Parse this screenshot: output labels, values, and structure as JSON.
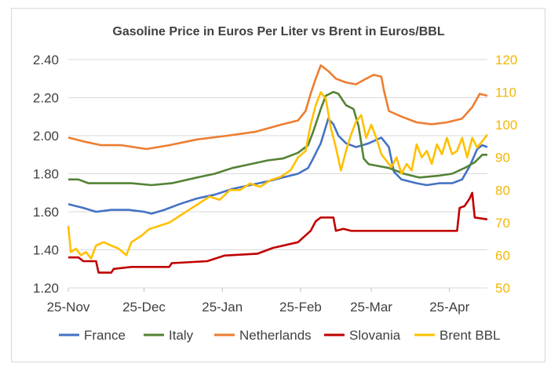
{
  "chart_data": {
    "type": "line",
    "title": "Gasoline Price in Euros Per Liter vs Brent in Euros/BBL",
    "x_tick_labels": [
      "25-Nov",
      "25-Dec",
      "25-Jan",
      "25-Feb",
      "25-Mar",
      "25-Apr"
    ],
    "x_start": "2021-11-25",
    "x_end": "2022-05-10",
    "left_axis": {
      "ylim": [
        1.2,
        2.4
      ],
      "ticks": [
        "1.20",
        "1.40",
        "1.60",
        "1.80",
        "2.00",
        "2.20",
        "2.40"
      ]
    },
    "right_axis": {
      "ylim": [
        50,
        120
      ],
      "ticks": [
        "50",
        "60",
        "70",
        "80",
        "90",
        "100",
        "110",
        "120"
      ]
    },
    "grid": "horizontal",
    "legend_position": "bottom",
    "series": [
      {
        "name": "France",
        "axis": "left",
        "color": "#4472c4",
        "points": [
          [
            "2021-11-25",
            1.64
          ],
          [
            "2021-11-28",
            1.63
          ],
          [
            "2021-12-01",
            1.62
          ],
          [
            "2021-12-06",
            1.6
          ],
          [
            "2021-12-12",
            1.61
          ],
          [
            "2021-12-19",
            1.61
          ],
          [
            "2021-12-25",
            1.6
          ],
          [
            "2021-12-28",
            1.59
          ],
          [
            "2022-01-02",
            1.61
          ],
          [
            "2022-01-08",
            1.64
          ],
          [
            "2022-01-15",
            1.67
          ],
          [
            "2022-01-22",
            1.69
          ],
          [
            "2022-01-29",
            1.72
          ],
          [
            "2022-02-05",
            1.74
          ],
          [
            "2022-02-12",
            1.76
          ],
          [
            "2022-02-18",
            1.78
          ],
          [
            "2022-02-24",
            1.8
          ],
          [
            "2022-02-28",
            1.83
          ],
          [
            "2022-03-02",
            1.88
          ],
          [
            "2022-03-05",
            1.96
          ],
          [
            "2022-03-08",
            2.09
          ],
          [
            "2022-03-10",
            2.06
          ],
          [
            "2022-03-12",
            2.0
          ],
          [
            "2022-03-15",
            1.96
          ],
          [
            "2022-03-19",
            1.94
          ],
          [
            "2022-03-24",
            1.96
          ],
          [
            "2022-03-29",
            1.99
          ],
          [
            "2022-04-01",
            1.94
          ],
          [
            "2022-04-03",
            1.81
          ],
          [
            "2022-04-06",
            1.77
          ],
          [
            "2022-04-12",
            1.75
          ],
          [
            "2022-04-16",
            1.74
          ],
          [
            "2022-04-21",
            1.75
          ],
          [
            "2022-04-26",
            1.75
          ],
          [
            "2022-04-30",
            1.77
          ],
          [
            "2022-05-03",
            1.84
          ],
          [
            "2022-05-06",
            1.93
          ],
          [
            "2022-05-08",
            1.95
          ],
          [
            "2022-05-10",
            1.94
          ]
        ]
      },
      {
        "name": "Italy",
        "axis": "left",
        "color": "#548235",
        "points": [
          [
            "2021-11-25",
            1.77
          ],
          [
            "2021-11-29",
            1.77
          ],
          [
            "2021-12-03",
            1.75
          ],
          [
            "2021-12-20",
            1.75
          ],
          [
            "2021-12-28",
            1.74
          ],
          [
            "2022-01-05",
            1.75
          ],
          [
            "2022-01-15",
            1.78
          ],
          [
            "2022-01-22",
            1.8
          ],
          [
            "2022-01-29",
            1.83
          ],
          [
            "2022-02-05",
            1.85
          ],
          [
            "2022-02-12",
            1.87
          ],
          [
            "2022-02-18",
            1.88
          ],
          [
            "2022-02-24",
            1.91
          ],
          [
            "2022-02-28",
            1.95
          ],
          [
            "2022-03-02",
            2.02
          ],
          [
            "2022-03-05",
            2.14
          ],
          [
            "2022-03-07",
            2.21
          ],
          [
            "2022-03-10",
            2.23
          ],
          [
            "2022-03-12",
            2.22
          ],
          [
            "2022-03-15",
            2.16
          ],
          [
            "2022-03-18",
            2.14
          ],
          [
            "2022-03-20",
            2.05
          ],
          [
            "2022-03-22",
            1.88
          ],
          [
            "2022-03-24",
            1.85
          ],
          [
            "2022-04-01",
            1.83
          ],
          [
            "2022-04-07",
            1.8
          ],
          [
            "2022-04-13",
            1.78
          ],
          [
            "2022-04-21",
            1.79
          ],
          [
            "2022-04-26",
            1.8
          ],
          [
            "2022-05-01",
            1.83
          ],
          [
            "2022-05-05",
            1.86
          ],
          [
            "2022-05-08",
            1.9
          ],
          [
            "2022-05-10",
            1.9
          ]
        ]
      },
      {
        "name": "Netherlands",
        "axis": "left",
        "color": "#ed7d31",
        "points": [
          [
            "2021-11-25",
            1.99
          ],
          [
            "2021-12-01",
            1.97
          ],
          [
            "2021-12-08",
            1.95
          ],
          [
            "2021-12-16",
            1.95
          ],
          [
            "2021-12-26",
            1.93
          ],
          [
            "2022-01-04",
            1.95
          ],
          [
            "2022-01-15",
            1.98
          ],
          [
            "2022-01-27",
            2.0
          ],
          [
            "2022-02-07",
            2.02
          ],
          [
            "2022-02-18",
            2.06
          ],
          [
            "2022-02-24",
            2.08
          ],
          [
            "2022-02-27",
            2.13
          ],
          [
            "2022-03-01",
            2.22
          ],
          [
            "2022-03-03",
            2.3
          ],
          [
            "2022-03-05",
            2.37
          ],
          [
            "2022-03-08",
            2.34
          ],
          [
            "2022-03-11",
            2.3
          ],
          [
            "2022-03-15",
            2.28
          ],
          [
            "2022-03-19",
            2.27
          ],
          [
            "2022-03-23",
            2.3
          ],
          [
            "2022-03-26",
            2.32
          ],
          [
            "2022-03-29",
            2.31
          ],
          [
            "2022-03-30",
            2.24
          ],
          [
            "2022-04-01",
            2.13
          ],
          [
            "2022-04-06",
            2.1
          ],
          [
            "2022-04-12",
            2.07
          ],
          [
            "2022-04-18",
            2.06
          ],
          [
            "2022-04-24",
            2.07
          ],
          [
            "2022-04-30",
            2.09
          ],
          [
            "2022-05-04",
            2.15
          ],
          [
            "2022-05-07",
            2.22
          ],
          [
            "2022-05-10",
            2.21
          ]
        ]
      },
      {
        "name": "Slovania",
        "axis": "left",
        "color": "#c00000",
        "points": [
          [
            "2021-11-25",
            1.36
          ],
          [
            "2021-11-29",
            1.36
          ],
          [
            "2021-12-01",
            1.34
          ],
          [
            "2021-12-06",
            1.34
          ],
          [
            "2021-12-07",
            1.28
          ],
          [
            "2021-12-12",
            1.28
          ],
          [
            "2021-12-13",
            1.3
          ],
          [
            "2021-12-20",
            1.31
          ],
          [
            "2022-01-04",
            1.31
          ],
          [
            "2022-01-05",
            1.33
          ],
          [
            "2022-01-19",
            1.34
          ],
          [
            "2022-01-26",
            1.37
          ],
          [
            "2022-02-08",
            1.38
          ],
          [
            "2022-02-14",
            1.41
          ],
          [
            "2022-02-24",
            1.44
          ],
          [
            "2022-03-01",
            1.5
          ],
          [
            "2022-03-03",
            1.55
          ],
          [
            "2022-03-05",
            1.57
          ],
          [
            "2022-03-10",
            1.57
          ],
          [
            "2022-03-11",
            1.5
          ],
          [
            "2022-03-14",
            1.51
          ],
          [
            "2022-03-17",
            1.5
          ],
          [
            "2022-04-28",
            1.5
          ],
          [
            "2022-04-29",
            1.62
          ],
          [
            "2022-05-01",
            1.63
          ],
          [
            "2022-05-03",
            1.67
          ],
          [
            "2022-05-04",
            1.7
          ],
          [
            "2022-05-05",
            1.57
          ],
          [
            "2022-05-10",
            1.56
          ]
        ]
      },
      {
        "name": "Brent BBL",
        "axis": "right",
        "color": "#ffc000",
        "points": [
          [
            "2021-11-25",
            69
          ],
          [
            "2021-11-26",
            61
          ],
          [
            "2021-11-28",
            62
          ],
          [
            "2021-11-30",
            60
          ],
          [
            "2021-12-02",
            61
          ],
          [
            "2021-12-04",
            59
          ],
          [
            "2021-12-06",
            63
          ],
          [
            "2021-12-09",
            64
          ],
          [
            "2021-12-12",
            63
          ],
          [
            "2021-12-15",
            62
          ],
          [
            "2021-12-18",
            60
          ],
          [
            "2021-12-20",
            64
          ],
          [
            "2021-12-24",
            66
          ],
          [
            "2021-12-27",
            68
          ],
          [
            "2021-12-31",
            69
          ],
          [
            "2022-01-04",
            70
          ],
          [
            "2022-01-08",
            72
          ],
          [
            "2022-01-12",
            74
          ],
          [
            "2022-01-16",
            76
          ],
          [
            "2022-01-20",
            78
          ],
          [
            "2022-01-24",
            77
          ],
          [
            "2022-01-28",
            80
          ],
          [
            "2022-02-01",
            80
          ],
          [
            "2022-02-05",
            82
          ],
          [
            "2022-02-09",
            81
          ],
          [
            "2022-02-13",
            83
          ],
          [
            "2022-02-17",
            84
          ],
          [
            "2022-02-21",
            86
          ],
          [
            "2022-02-24",
            90
          ],
          [
            "2022-02-27",
            92
          ],
          [
            "2022-03-01",
            100
          ],
          [
            "2022-03-03",
            106
          ],
          [
            "2022-03-05",
            110
          ],
          [
            "2022-03-07",
            108
          ],
          [
            "2022-03-09",
            99
          ],
          [
            "2022-03-11",
            93
          ],
          [
            "2022-03-13",
            86
          ],
          [
            "2022-03-15",
            92
          ],
          [
            "2022-03-17",
            97
          ],
          [
            "2022-03-19",
            101
          ],
          [
            "2022-03-21",
            103
          ],
          [
            "2022-03-23",
            96
          ],
          [
            "2022-03-25",
            100
          ],
          [
            "2022-03-27",
            96
          ],
          [
            "2022-03-29",
            91
          ],
          [
            "2022-03-31",
            89
          ],
          [
            "2022-04-02",
            87
          ],
          [
            "2022-04-04",
            90
          ],
          [
            "2022-04-06",
            85
          ],
          [
            "2022-04-08",
            88
          ],
          [
            "2022-04-10",
            86
          ],
          [
            "2022-04-12",
            94
          ],
          [
            "2022-04-14",
            90
          ],
          [
            "2022-04-16",
            92
          ],
          [
            "2022-04-18",
            88
          ],
          [
            "2022-04-20",
            94
          ],
          [
            "2022-04-22",
            91
          ],
          [
            "2022-04-24",
            96
          ],
          [
            "2022-04-26",
            91
          ],
          [
            "2022-04-28",
            92
          ],
          [
            "2022-04-30",
            96
          ],
          [
            "2022-05-02",
            90
          ],
          [
            "2022-05-04",
            96
          ],
          [
            "2022-05-06",
            93
          ],
          [
            "2022-05-08",
            95
          ],
          [
            "2022-05-10",
            97
          ]
        ]
      }
    ]
  }
}
